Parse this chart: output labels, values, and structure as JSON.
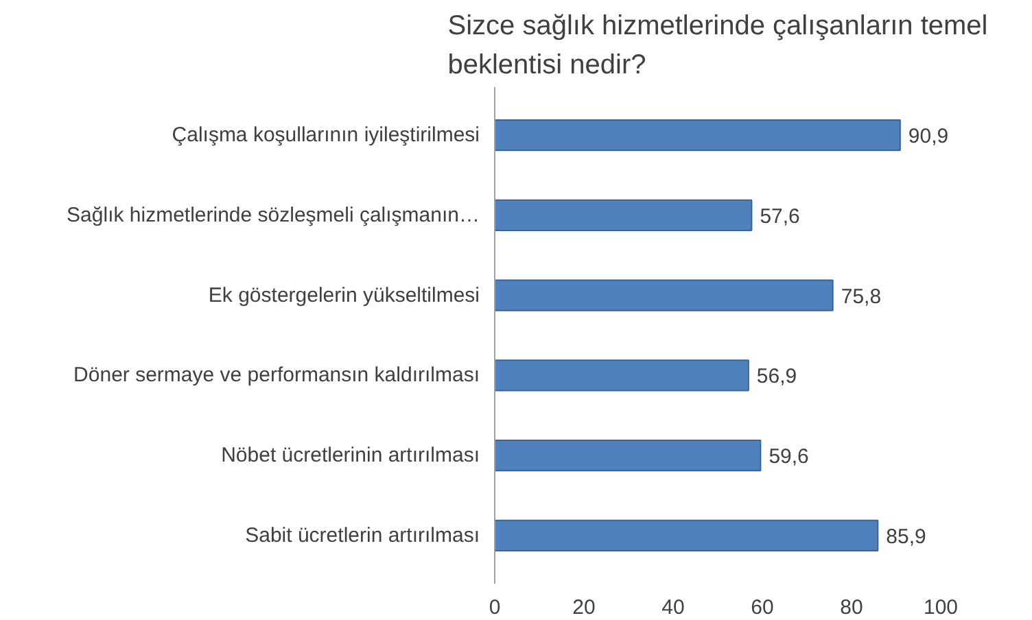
{
  "chart_data": {
    "type": "bar",
    "orientation": "horizontal",
    "title": "Sizce sağlık hizmetlerinde çalışanların temel beklentisi nedir?",
    "categories": [
      "Çalışma koşullarının iyileştirilmesi",
      "Sağlık hizmetlerinde sözleşmeli çalışmanın…",
      "Ek göstergelerin yükseltilmesi",
      "Döner sermaye ve performansın kaldırılması",
      "Nöbet ücretlerinin artırılması",
      "Sabit ücretlerin artırılması"
    ],
    "values": [
      90.9,
      57.6,
      75.8,
      56.9,
      59.6,
      85.9
    ],
    "value_labels": [
      "90,9",
      "57,6",
      "75,8",
      "56,9",
      "59,6",
      "85,9"
    ],
    "color": "#4f81bd",
    "xlim": [
      0,
      100
    ],
    "xticks": [
      0,
      20,
      40,
      60,
      80,
      100
    ],
    "grid": false
  }
}
